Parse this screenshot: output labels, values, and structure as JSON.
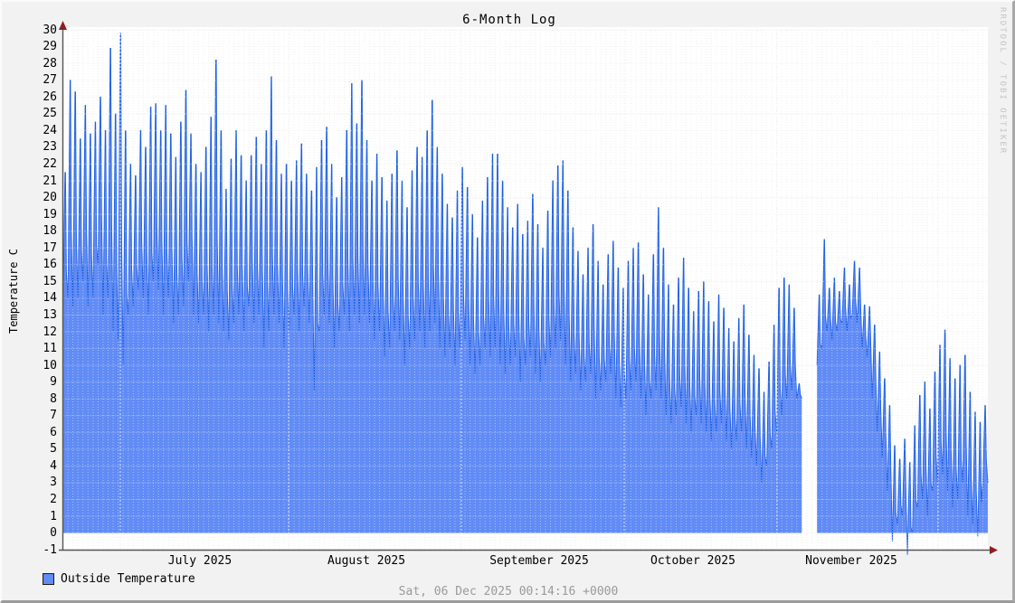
{
  "header": {
    "title": "6-Month Log"
  },
  "watermark": "RRDTOOL / TOBI OETIKER",
  "footer": {
    "timestamp": "Sat, 06 Dec 2025 00:14:16 +0000"
  },
  "legend": {
    "label": "Outside Temperature"
  },
  "chart_data": {
    "type": "area",
    "title": "6-Month Log",
    "ylabel": "Temperature C",
    "xlabel": "",
    "ylim": [
      -1,
      30
    ],
    "grid": "on",
    "legend_position": "bottom-left",
    "y_ticks": [
      30,
      29,
      28,
      27,
      26,
      25,
      24,
      23,
      22,
      21,
      20,
      19,
      18,
      17,
      16,
      15,
      14,
      13,
      12,
      11,
      10,
      9,
      8,
      7,
      6,
      5,
      4,
      3,
      2,
      1,
      0,
      -1
    ],
    "y_major_ticks": [
      30,
      25,
      20,
      15,
      10,
      5,
      0
    ],
    "x_tick_labels": [
      "July 2025",
      "August 2025",
      "September 2025",
      "October 2025",
      "November 2025"
    ],
    "colors": {
      "area": "#618bf5",
      "line": "#1c5fe2",
      "axis": "#555555",
      "arrow": "#8f1f1f",
      "grid_minor": "#e4e4e4",
      "grid_major": "#cccccc",
      "background": "#f2f2f2",
      "plot_background": "#ffffff"
    },
    "series": [
      {
        "name": "Outside Temperature",
        "unit": "C",
        "sampling": "daily [min,max], June 6 2025 through December 5 2025, null = missing data gap",
        "daily_min_max": [
          [
            13,
            21.5
          ],
          [
            14,
            27
          ],
          [
            13.5,
            26.3
          ],
          [
            14,
            23.5
          ],
          [
            15,
            25.5
          ],
          [
            13.5,
            23.8
          ],
          [
            14,
            24.5
          ],
          [
            16,
            26
          ],
          [
            13,
            24
          ],
          [
            14,
            28.9
          ],
          [
            12,
            25
          ],
          [
            11.5,
            29.8
          ],
          [
            10,
            24
          ],
          [
            13,
            22
          ],
          [
            13.5,
            21.3
          ],
          [
            14.5,
            24
          ],
          [
            14,
            23
          ],
          [
            13,
            25.4
          ],
          [
            15,
            25.6
          ],
          [
            14.5,
            24
          ],
          [
            13,
            25.5
          ],
          [
            14,
            23.8
          ],
          [
            12.5,
            22.4
          ],
          [
            13,
            24.5
          ],
          [
            13.5,
            26.4
          ],
          [
            15,
            23.8
          ],
          [
            13,
            22
          ],
          [
            12.5,
            21.5
          ],
          [
            13,
            23
          ],
          [
            12,
            24.8
          ],
          [
            13,
            28.2
          ],
          [
            12.5,
            24
          ],
          [
            12,
            20.5
          ],
          [
            11.5,
            22.3
          ],
          [
            12.5,
            24
          ],
          [
            13,
            22.5
          ],
          [
            12,
            21
          ],
          [
            13.5,
            22.5
          ],
          [
            12.5,
            23.6
          ],
          [
            13,
            22
          ],
          [
            11,
            24
          ],
          [
            12,
            27.2
          ],
          [
            13,
            23.4
          ],
          [
            12.5,
            21.4
          ],
          [
            11,
            22
          ],
          [
            12,
            21
          ],
          [
            13,
            22.2
          ],
          [
            12,
            23.2
          ],
          [
            13.5,
            21.4
          ],
          [
            12.5,
            20.4
          ],
          [
            8.5,
            21.8
          ],
          [
            12,
            23.4
          ],
          [
            13,
            24.2
          ],
          [
            12.5,
            22
          ],
          [
            11,
            20
          ],
          [
            12,
            21.2
          ],
          [
            13,
            24
          ],
          [
            12,
            26.8
          ],
          [
            13,
            24.4
          ],
          [
            12.5,
            27
          ],
          [
            13,
            23.4
          ],
          [
            12.5,
            21
          ],
          [
            11.5,
            22.6
          ],
          [
            12,
            21.2
          ],
          [
            10.5,
            19.8
          ],
          [
            11,
            21.4
          ],
          [
            12,
            22.8
          ],
          [
            11.5,
            21
          ],
          [
            10,
            19.4
          ],
          [
            11,
            21.6
          ],
          [
            11.5,
            23
          ],
          [
            12,
            22.4
          ],
          [
            11,
            24
          ],
          [
            12,
            25.8
          ],
          [
            12.5,
            23
          ],
          [
            11,
            21.4
          ],
          [
            10.5,
            19.6
          ],
          [
            11,
            18.8
          ],
          [
            10,
            20.4
          ],
          [
            11,
            21.8
          ],
          [
            11.5,
            20.6
          ],
          [
            10,
            19
          ],
          [
            9.5,
            17.6
          ],
          [
            10,
            19.8
          ],
          [
            11,
            21.2
          ],
          [
            10.5,
            22.6
          ],
          [
            11,
            22.6
          ],
          [
            10,
            21
          ],
          [
            9.5,
            19.4
          ],
          [
            10,
            18.2
          ],
          [
            10.5,
            19.6
          ],
          [
            9,
            17.8
          ],
          [
            10,
            18.6
          ],
          [
            10.5,
            20.2
          ],
          [
            9.5,
            18.4
          ],
          [
            9,
            17
          ],
          [
            10,
            19.2
          ],
          [
            10.5,
            21
          ],
          [
            11,
            21.9
          ],
          [
            11.5,
            22.2
          ],
          [
            10,
            20.4
          ],
          [
            9,
            18.2
          ],
          [
            9.5,
            16.8
          ],
          [
            8.5,
            15.4
          ],
          [
            9,
            17
          ],
          [
            9.5,
            18.4
          ],
          [
            8,
            16.2
          ],
          [
            8.5,
            14.8
          ],
          [
            9,
            16.6
          ],
          [
            9.5,
            17.4
          ],
          [
            8,
            15.8
          ],
          [
            7.5,
            14.6
          ],
          [
            8,
            16.2
          ],
          [
            8.5,
            17
          ],
          [
            9,
            17.3
          ],
          [
            8,
            15.4
          ],
          [
            7,
            14.2
          ],
          [
            8,
            16.6
          ],
          [
            8.5,
            19.4
          ],
          [
            8,
            17
          ],
          [
            7,
            14.8
          ],
          [
            6.5,
            13.6
          ],
          [
            7,
            15.2
          ],
          [
            7.5,
            16.4
          ],
          [
            6.5,
            14.6
          ],
          [
            6,
            13.2
          ],
          [
            7,
            14.4
          ],
          [
            6.5,
            15
          ],
          [
            6,
            13.8
          ],
          [
            5.5,
            12.6
          ],
          [
            6,
            14.2
          ],
          [
            6.5,
            13.4
          ],
          [
            5.5,
            12.2
          ],
          [
            5,
            11.4
          ],
          [
            5.5,
            12.8
          ],
          [
            6,
            13.6
          ],
          [
            5,
            11.8
          ],
          [
            4.5,
            10.6
          ],
          [
            4,
            9.8
          ],
          [
            3,
            8.4
          ],
          [
            4,
            10.2
          ],
          [
            5,
            12.4
          ],
          [
            6,
            14.6
          ],
          [
            7,
            15.2
          ],
          [
            8,
            14.8
          ],
          [
            8.5,
            13.4
          ],
          [
            8,
            8.9
          ],
          null,
          null,
          null,
          [
            10,
            14.2
          ],
          [
            11,
            17.5
          ],
          [
            12,
            14.6
          ],
          [
            11.5,
            15.2
          ],
          [
            12,
            14.4
          ],
          [
            12.5,
            15.8
          ],
          [
            12,
            14.8
          ],
          [
            13,
            16.2
          ],
          [
            12.5,
            15.8
          ],
          [
            11,
            13.6
          ],
          [
            10.5,
            13.5
          ],
          [
            8,
            12.4
          ],
          [
            6,
            10.8
          ],
          [
            4.5,
            9.2
          ],
          [
            2.5,
            7.6
          ],
          [
            -0.5,
            5.2
          ],
          [
            0.5,
            4.4
          ],
          [
            1,
            5.6
          ],
          [
            -1.3,
            4.2
          ],
          [
            0,
            6.4
          ],
          [
            1.5,
            8.2
          ],
          [
            2,
            9
          ],
          [
            1,
            7.4
          ],
          [
            2.5,
            9.6
          ],
          [
            3,
            11.2
          ],
          [
            3.5,
            12.1
          ],
          [
            2.5,
            10.4
          ],
          [
            1.5,
            9.2
          ],
          [
            2,
            10
          ],
          [
            3,
            10.6
          ],
          [
            1,
            8.4
          ],
          [
            0.5,
            7.2
          ],
          [
            -0.2,
            6.6
          ],
          [
            3,
            7.6
          ]
        ]
      }
    ]
  }
}
